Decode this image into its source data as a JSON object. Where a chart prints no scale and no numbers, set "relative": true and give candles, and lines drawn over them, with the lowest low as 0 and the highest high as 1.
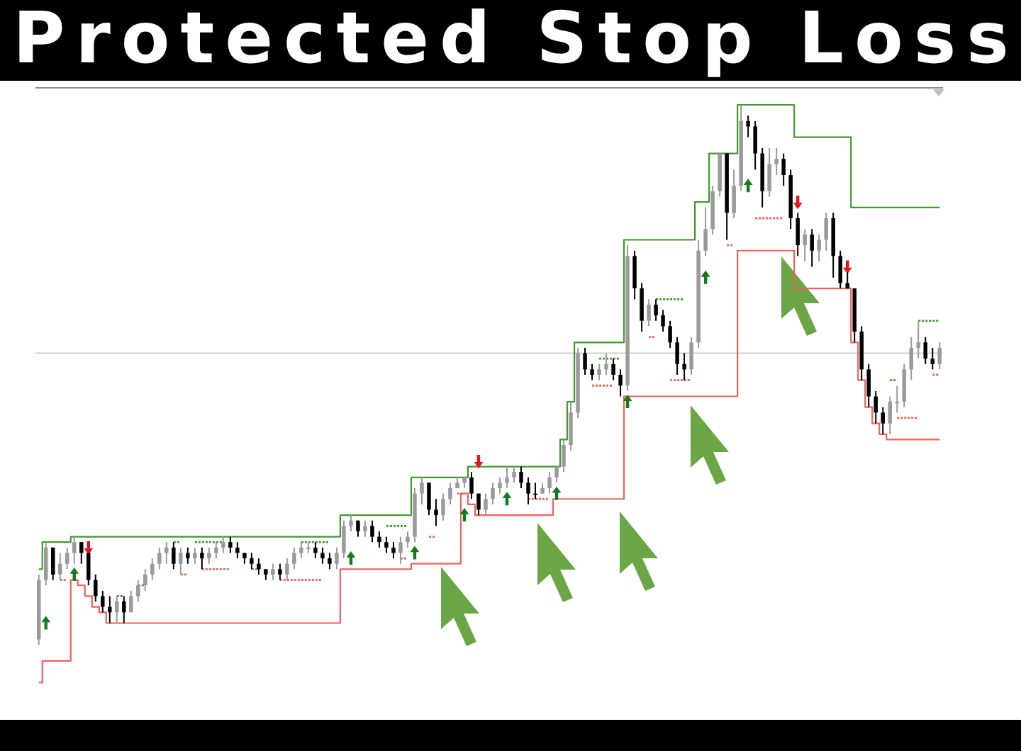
{
  "chart_data": {
    "type": "candlestick",
    "title": "Protected Stop Loss",
    "relative": true,
    "tick_labels": false,
    "categories": [
      null,
      null,
      null,
      null,
      null,
      null,
      null,
      null,
      null,
      null,
      null,
      null,
      null,
      null,
      null,
      null,
      null,
      null,
      null,
      null,
      null,
      null,
      null,
      null,
      null,
      null,
      null,
      null,
      null,
      null,
      null,
      null,
      null,
      null,
      null,
      null,
      null,
      null,
      null,
      null,
      null,
      null,
      null,
      null,
      null,
      null,
      null,
      null,
      null,
      null,
      null,
      null,
      null,
      null,
      null,
      null,
      null,
      null,
      null,
      null,
      null,
      null,
      null,
      null,
      null,
      null,
      null,
      null,
      null,
      null,
      null,
      null,
      null,
      null,
      null,
      null,
      null,
      null,
      null,
      null,
      null,
      null,
      null,
      null,
      null,
      null,
      null,
      null,
      null,
      null,
      null,
      null,
      null,
      null,
      null,
      null,
      null,
      null,
      null,
      null,
      null,
      null,
      null,
      null,
      null,
      null,
      null,
      null,
      null,
      null,
      null,
      null,
      null,
      null,
      null,
      null,
      null,
      null,
      null,
      null,
      null,
      null,
      null,
      null,
      null,
      null,
      null,
      null
    ],
    "ohlc": [
      [
        0.01,
        0.13,
        0,
        0.12
      ],
      [
        0.12,
        0.19,
        0.11,
        0.18
      ],
      [
        0.18,
        0.18,
        0.12,
        0.13
      ],
      [
        0.13,
        0.17,
        0.12,
        0.15
      ],
      [
        0.15,
        0.18,
        0.14,
        0.17
      ],
      [
        0.17,
        0.2,
        0.15,
        0.19
      ],
      [
        0.19,
        0.19,
        0.15,
        0.17
      ],
      [
        0.17,
        0.17,
        0.11,
        0.12
      ],
      [
        0.12,
        0.13,
        0.08,
        0.09
      ],
      [
        0.09,
        0.1,
        0.06,
        0.07
      ],
      [
        0.07,
        0.09,
        0.04,
        0.06
      ],
      [
        0.06,
        0.09,
        0.04,
        0.08
      ],
      [
        0.08,
        0.09,
        0.04,
        0.06
      ],
      [
        0.06,
        0.1,
        0.06,
        0.09
      ],
      [
        0.09,
        0.12,
        0.08,
        0.11
      ],
      [
        0.11,
        0.14,
        0.1,
        0.13
      ],
      [
        0.13,
        0.16,
        0.12,
        0.15
      ],
      [
        0.15,
        0.18,
        0.14,
        0.17
      ],
      [
        0.17,
        0.19,
        0.15,
        0.18
      ],
      [
        0.18,
        0.19,
        0.14,
        0.15
      ],
      [
        0.15,
        0.18,
        0.13,
        0.17
      ],
      [
        0.17,
        0.18,
        0.15,
        0.16
      ],
      [
        0.16,
        0.18,
        0.15,
        0.17
      ],
      [
        0.17,
        0.18,
        0.14,
        0.16
      ],
      [
        0.16,
        0.18,
        0.15,
        0.17
      ],
      [
        0.17,
        0.19,
        0.16,
        0.18
      ],
      [
        0.18,
        0.2,
        0.17,
        0.19
      ],
      [
        0.19,
        0.2,
        0.17,
        0.18
      ],
      [
        0.18,
        0.19,
        0.16,
        0.17
      ],
      [
        0.17,
        0.17,
        0.15,
        0.16
      ],
      [
        0.16,
        0.17,
        0.14,
        0.15
      ],
      [
        0.15,
        0.16,
        0.13,
        0.14
      ],
      [
        0.14,
        0.14,
        0.12,
        0.13
      ],
      [
        0.13,
        0.15,
        0.12,
        0.14
      ],
      [
        0.14,
        0.15,
        0.12,
        0.13
      ],
      [
        0.13,
        0.16,
        0.12,
        0.15
      ],
      [
        0.15,
        0.18,
        0.14,
        0.17
      ],
      [
        0.17,
        0.19,
        0.16,
        0.18
      ],
      [
        0.18,
        0.19,
        0.17,
        0.18
      ],
      [
        0.18,
        0.19,
        0.16,
        0.17
      ],
      [
        0.17,
        0.18,
        0.15,
        0.16
      ],
      [
        0.16,
        0.17,
        0.14,
        0.15
      ],
      [
        0.15,
        0.18,
        0.14,
        0.17
      ],
      [
        0.17,
        0.23,
        0.16,
        0.22
      ],
      [
        0.22,
        0.24,
        0.21,
        0.23
      ],
      [
        0.23,
        0.23,
        0.2,
        0.21
      ],
      [
        0.21,
        0.23,
        0.2,
        0.22
      ],
      [
        0.22,
        0.23,
        0.19,
        0.2
      ],
      [
        0.2,
        0.21,
        0.18,
        0.19
      ],
      [
        0.19,
        0.2,
        0.17,
        0.18
      ],
      [
        0.18,
        0.19,
        0.16,
        0.17
      ],
      [
        0.17,
        0.2,
        0.15,
        0.19
      ],
      [
        0.19,
        0.21,
        0.18,
        0.2
      ],
      [
        0.2,
        0.29,
        0.19,
        0.28
      ],
      [
        0.28,
        0.31,
        0.26,
        0.3
      ],
      [
        0.3,
        0.3,
        0.24,
        0.25
      ],
      [
        0.25,
        0.27,
        0.22,
        0.24
      ],
      [
        0.24,
        0.28,
        0.23,
        0.27
      ],
      [
        0.27,
        0.3,
        0.26,
        0.29
      ],
      [
        0.29,
        0.31,
        0.29,
        0.3
      ],
      [
        0.3,
        0.31,
        0.29,
        0.31
      ],
      [
        0.31,
        0.32,
        0.27,
        0.28
      ],
      [
        0.28,
        0.28,
        0.24,
        0.25
      ],
      [
        0.25,
        0.28,
        0.24,
        0.27
      ],
      [
        0.27,
        0.3,
        0.26,
        0.29
      ],
      [
        0.29,
        0.31,
        0.28,
        0.3
      ],
      [
        0.3,
        0.33,
        0.29,
        0.31
      ],
      [
        0.31,
        0.33,
        0.3,
        0.32
      ],
      [
        0.32,
        0.33,
        0.29,
        0.3
      ],
      [
        0.3,
        0.31,
        0.26,
        0.28
      ],
      [
        0.28,
        0.3,
        0.27,
        0.28
      ],
      [
        0.28,
        0.3,
        0.28,
        0.29
      ],
      [
        0.29,
        0.32,
        0.28,
        0.31
      ],
      [
        0.31,
        0.33,
        0.3,
        0.33
      ],
      [
        0.33,
        0.38,
        0.32,
        0.37
      ],
      [
        0.37,
        0.45,
        0.36,
        0.43
      ],
      [
        0.43,
        0.55,
        0.42,
        0.54
      ],
      [
        0.54,
        0.55,
        0.5,
        0.51
      ],
      [
        0.51,
        0.52,
        0.49,
        0.5
      ],
      [
        0.5,
        0.52,
        0.49,
        0.51
      ],
      [
        0.51,
        0.54,
        0.5,
        0.52
      ],
      [
        0.52,
        0.53,
        0.49,
        0.5
      ],
      [
        0.5,
        0.51,
        0.46,
        0.48
      ],
      [
        0.48,
        0.74,
        0.47,
        0.72
      ],
      [
        0.72,
        0.73,
        0.64,
        0.66
      ],
      [
        0.66,
        0.67,
        0.58,
        0.6
      ],
      [
        0.6,
        0.64,
        0.59,
        0.63
      ],
      [
        0.63,
        0.64,
        0.6,
        0.61
      ],
      [
        0.61,
        0.62,
        0.58,
        0.59
      ],
      [
        0.59,
        0.6,
        0.55,
        0.56
      ],
      [
        0.56,
        0.57,
        0.5,
        0.52
      ],
      [
        0.52,
        0.54,
        0.49,
        0.51
      ],
      [
        0.51,
        0.57,
        0.5,
        0.56
      ],
      [
        0.56,
        0.75,
        0.55,
        0.73
      ],
      [
        0.73,
        0.81,
        0.72,
        0.77
      ],
      [
        0.77,
        0.85,
        0.76,
        0.84
      ],
      [
        0.84,
        0.91,
        0.83,
        0.91
      ],
      [
        0.91,
        0.91,
        0.75,
        0.8
      ],
      [
        0.8,
        0.88,
        0.79,
        0.85
      ],
      [
        0.85,
        1,
        0.84,
        0.97
      ],
      [
        0.97,
        0.98,
        0.94,
        0.96
      ],
      [
        0.96,
        0.97,
        0.88,
        0.91
      ],
      [
        0.91,
        0.92,
        0.81,
        0.84
      ],
      [
        0.84,
        0.92,
        0.83,
        0.89
      ],
      [
        0.89,
        0.92,
        0.87,
        0.9
      ],
      [
        0.9,
        0.91,
        0.85,
        0.87
      ],
      [
        0.87,
        0.88,
        0.77,
        0.79
      ],
      [
        0.79,
        0.8,
        0.72,
        0.74
      ],
      [
        0.74,
        0.77,
        0.71,
        0.76
      ],
      [
        0.76,
        0.77,
        0.7,
        0.73
      ],
      [
        0.73,
        0.76,
        0.71,
        0.75
      ],
      [
        0.75,
        0.8,
        0.73,
        0.79
      ],
      [
        0.79,
        0.8,
        0.68,
        0.72
      ],
      [
        0.72,
        0.73,
        0.66,
        0.67
      ],
      [
        0.67,
        0.69,
        0.66,
        0.66
      ],
      [
        0.66,
        0.66,
        0.56,
        0.58
      ],
      [
        0.58,
        0.59,
        0.49,
        0.51
      ],
      [
        0.51,
        0.52,
        0.44,
        0.46
      ],
      [
        0.46,
        0.47,
        0.41,
        0.43
      ],
      [
        0.43,
        0.44,
        0.39,
        0.41
      ],
      [
        0.41,
        0.46,
        0.39,
        0.45
      ],
      [
        0.45,
        0.48,
        0.43,
        0.45
      ],
      [
        0.45,
        0.52,
        0.44,
        0.51
      ],
      [
        0.51,
        0.57,
        0.49,
        0.55
      ],
      [
        0.55,
        0.6,
        0.53,
        0.56
      ],
      [
        0.56,
        0.57,
        0.52,
        0.53
      ],
      [
        0.53,
        0.55,
        0.51,
        0.52
      ],
      [
        0.52,
        0.56,
        0.51,
        0.55
      ]
    ],
    "colors": [
      "#9a9a9a",
      "#9a9a9a",
      "#000000",
      "#9a9a9a",
      "#9a9a9a",
      "#9a9a9a",
      "#000000",
      "#000000",
      "#000000",
      "#000000",
      "#000000",
      "#9a9a9a",
      "#000000",
      "#9a9a9a",
      "#9a9a9a",
      "#9a9a9a",
      "#9a9a9a",
      "#9a9a9a",
      "#9a9a9a",
      "#000000",
      "#9a9a9a",
      "#000000",
      "#9a9a9a",
      "#000000",
      "#9a9a9a",
      "#9a9a9a",
      "#9a9a9a",
      "#000000",
      "#000000",
      "#000000",
      "#000000",
      "#000000",
      "#000000",
      "#9a9a9a",
      "#000000",
      "#9a9a9a",
      "#9a9a9a",
      "#9a9a9a",
      "#9a9a9a",
      "#000000",
      "#000000",
      "#000000",
      "#9a9a9a",
      "#9a9a9a",
      "#9a9a9a",
      "#000000",
      "#9a9a9a",
      "#000000",
      "#000000",
      "#000000",
      "#000000",
      "#9a9a9a",
      "#9a9a9a",
      "#9a9a9a",
      "#9a9a9a",
      "#000000",
      "#000000",
      "#9a9a9a",
      "#9a9a9a",
      "#9a9a9a",
      "#9a9a9a",
      "#000000",
      "#000000",
      "#9a9a9a",
      "#9a9a9a",
      "#9a9a9a",
      "#9a9a9a",
      "#9a9a9a",
      "#000000",
      "#000000",
      "#000000",
      "#9a9a9a",
      "#9a9a9a",
      "#9a9a9a",
      "#9a9a9a",
      "#9a9a9a",
      "#9a9a9a",
      "#000000",
      "#000000",
      "#9a9a9a",
      "#9a9a9a",
      "#000000",
      "#000000",
      "#9a9a9a",
      "#000000",
      "#000000",
      "#9a9a9a",
      "#000000",
      "#000000",
      "#000000",
      "#000000",
      "#000000",
      "#9a9a9a",
      "#9a9a9a",
      "#9a9a9a",
      "#9a9a9a",
      "#9a9a9a",
      "#000000",
      "#9a9a9a",
      "#9a9a9a",
      "#000000",
      "#000000",
      "#000000",
      "#9a9a9a",
      "#9a9a9a",
      "#000000",
      "#000000",
      "#000000",
      "#9a9a9a",
      "#000000",
      "#9a9a9a",
      "#9a9a9a",
      "#000000",
      "#000000",
      "#000000",
      "#000000",
      "#000000",
      "#000000",
      "#000000",
      "#000000",
      "#9a9a9a",
      "#9a9a9a",
      "#9a9a9a",
      "#9a9a9a",
      "#9a9a9a",
      "#000000",
      "#000000",
      "#9a9a9a"
    ],
    "series": [
      {
        "type": "step",
        "color": "#3f9a2e",
        "values": [
          0.14,
          0.19,
          0.19,
          0.19,
          0.19,
          0.2,
          0.2,
          0.2,
          0.2,
          0.2,
          0.2,
          0.2,
          0.2,
          0.2,
          0.2,
          0.2,
          0.2,
          0.2,
          0.2,
          0.2,
          0.2,
          0.2,
          0.2,
          0.2,
          0.2,
          0.2,
          0.2,
          0.2,
          0.2,
          0.2,
          0.2,
          0.2,
          0.2,
          0.2,
          0.2,
          0.2,
          0.2,
          0.2,
          0.2,
          0.2,
          0.2,
          0.2,
          0.2,
          0.24,
          0.24,
          0.24,
          0.24,
          0.24,
          0.24,
          0.24,
          0.24,
          0.24,
          0.24,
          0.31,
          0.31,
          0.31,
          0.31,
          0.31,
          0.31,
          0.31,
          0.31,
          0.33,
          0.33,
          0.33,
          0.33,
          0.33,
          0.33,
          0.33,
          0.33,
          0.33,
          0.33,
          0.33,
          0.33,
          0.33,
          0.38,
          0.45,
          0.56,
          0.56,
          0.56,
          0.56,
          0.56,
          0.56,
          0.56,
          0.75,
          0.75,
          0.75,
          0.75,
          0.75,
          0.75,
          0.75,
          0.75,
          0.75,
          0.75,
          0.82,
          0.82,
          0.91,
          0.91,
          0.91,
          0.91,
          1,
          1,
          1,
          1,
          1,
          1,
          1,
          1,
          0.94,
          0.94,
          0.94,
          0.94,
          0.94,
          0.94,
          0.94,
          0.94,
          0.81,
          0.81,
          0.81,
          0.81,
          0.81,
          0.81,
          0.81,
          0.81,
          0.81,
          0.81,
          0.81,
          0.81,
          0.81
        ]
      },
      {
        "type": "step",
        "color": "#f0625c",
        "values": [
          -0.07,
          -0.03,
          -0.03,
          -0.03,
          -0.03,
          0.12,
          0.11,
          0.09,
          0.07,
          0.06,
          0.04,
          0.04,
          0.04,
          0.04,
          0.04,
          0.04,
          0.04,
          0.04,
          0.04,
          0.04,
          0.04,
          0.04,
          0.04,
          0.04,
          0.04,
          0.04,
          0.04,
          0.04,
          0.04,
          0.04,
          0.04,
          0.04,
          0.04,
          0.04,
          0.04,
          0.04,
          0.04,
          0.04,
          0.04,
          0.04,
          0.04,
          0.04,
          0.04,
          0.14,
          0.14,
          0.14,
          0.14,
          0.14,
          0.14,
          0.14,
          0.14,
          0.14,
          0.14,
          0.15,
          0.15,
          0.15,
          0.15,
          0.15,
          0.15,
          0.15,
          0.28,
          0.26,
          0.24,
          0.24,
          0.24,
          0.24,
          0.24,
          0.24,
          0.24,
          0.24,
          0.24,
          0.24,
          0.24,
          0.27,
          0.27,
          0.27,
          0.27,
          0.27,
          0.27,
          0.27,
          0.27,
          0.27,
          0.27,
          0.46,
          0.46,
          0.46,
          0.46,
          0.46,
          0.46,
          0.46,
          0.46,
          0.46,
          0.46,
          0.46,
          0.46,
          0.46,
          0.46,
          0.46,
          0.46,
          0.73,
          0.73,
          0.73,
          0.73,
          0.73,
          0.73,
          0.73,
          0.73,
          0.66,
          0.66,
          0.66,
          0.66,
          0.66,
          0.66,
          0.66,
          0.66,
          0.56,
          0.49,
          0.44,
          0.41,
          0.39,
          0.38,
          0.38,
          0.38,
          0.38,
          0.38,
          0.38,
          0.38,
          0.38
        ]
      },
      {
        "type": "line",
        "line_style": "dotted",
        "color": "#3f9a2e",
        "values": [
          null,
          null,
          null,
          null,
          null,
          null,
          null,
          null,
          null,
          null,
          null,
          0.09,
          0.09,
          null,
          0.11,
          0.11,
          null,
          null,
          null,
          0.19,
          0.19,
          null,
          0.19,
          0.19,
          0.19,
          0.19,
          0.19,
          null,
          null,
          null,
          null,
          null,
          null,
          null,
          null,
          null,
          null,
          0.19,
          0.19,
          0.19,
          0.19,
          0.19,
          null,
          null,
          null,
          null,
          null,
          null,
          null,
          0.22,
          0.22,
          0.22,
          0.22,
          null,
          null,
          null,
          null,
          null,
          null,
          null,
          null,
          null,
          null,
          null,
          null,
          null,
          null,
          null,
          null,
          null,
          null,
          null,
          null,
          null,
          null,
          null,
          null,
          null,
          null,
          0.53,
          0.53,
          0.53,
          0.53,
          null,
          null,
          null,
          null,
          0.64,
          0.64,
          0.64,
          0.64,
          0.64,
          null,
          null,
          null,
          null,
          null,
          null,
          null,
          null,
          null,
          null,
          null,
          null,
          null,
          null,
          null,
          null,
          null,
          null,
          null,
          null,
          null,
          null,
          null,
          null,
          null,
          null,
          null,
          null,
          0.49,
          0.49,
          null,
          null,
          0.6,
          0.6,
          0.6,
          0.6
        ]
      },
      {
        "type": "line",
        "line_style": "dotted",
        "color": "#f0625c",
        "values": [
          null,
          null,
          null,
          0.12,
          0.12,
          null,
          null,
          null,
          null,
          null,
          null,
          null,
          null,
          null,
          null,
          null,
          null,
          null,
          null,
          null,
          0.13,
          0.13,
          null,
          0.14,
          0.14,
          0.14,
          0.14,
          0.14,
          null,
          null,
          0.14,
          0.14,
          null,
          null,
          0.12,
          0.12,
          0.12,
          0.12,
          0.12,
          0.12,
          0.12,
          null,
          null,
          null,
          null,
          null,
          null,
          null,
          null,
          null,
          null,
          0.16,
          0.16,
          null,
          null,
          0.2,
          0.2,
          null,
          null,
          0.28,
          0.28,
          null,
          null,
          null,
          null,
          null,
          null,
          null,
          null,
          0.27,
          0.27,
          0.27,
          0.27,
          null,
          null,
          null,
          null,
          null,
          0.48,
          0.48,
          0.48,
          0.48,
          null,
          null,
          null,
          null,
          0.57,
          0.57,
          null,
          0.49,
          0.49,
          0.49,
          0.49,
          null,
          null,
          null,
          null,
          0.74,
          0.74,
          null,
          null,
          0.79,
          0.79,
          0.79,
          0.79,
          0.79,
          null,
          null,
          null,
          null,
          null,
          null,
          null,
          null,
          null,
          null,
          null,
          null,
          null,
          null,
          null,
          0.42,
          0.42,
          0.42,
          0.42,
          null,
          0.5,
          0.5
        ]
      },
      {
        "type": "scatter",
        "marker": "triangle",
        "color": "#0f7a1e",
        "values": [
          null,
          0.04,
          null,
          null,
          null,
          0.13,
          null,
          null,
          null,
          null,
          null,
          null,
          null,
          null,
          null,
          null,
          null,
          null,
          null,
          null,
          null,
          null,
          null,
          null,
          null,
          null,
          null,
          null,
          null,
          null,
          null,
          null,
          null,
          null,
          null,
          null,
          null,
          null,
          null,
          null,
          null,
          null,
          null,
          null,
          0.16,
          null,
          null,
          null,
          null,
          null,
          null,
          null,
          null,
          0.17,
          null,
          null,
          null,
          null,
          null,
          null,
          0.24,
          null,
          null,
          null,
          null,
          null,
          0.27,
          null,
          null,
          null,
          null,
          null,
          null,
          0.28,
          null,
          null,
          null,
          null,
          null,
          null,
          null,
          null,
          null,
          0.45,
          null,
          null,
          null,
          null,
          null,
          null,
          null,
          null,
          null,
          null,
          0.68,
          null,
          null,
          null,
          null,
          null,
          0.85,
          null,
          null,
          null,
          null,
          null,
          null,
          null,
          null,
          null,
          null,
          null,
          null,
          null,
          null,
          null,
          null,
          null,
          null,
          null,
          null,
          null,
          null,
          null,
          null,
          null,
          null,
          null
        ]
      },
      {
        "type": "scatter",
        "marker": "triangle",
        "color": "#e3161b",
        "values": [
          null,
          null,
          null,
          null,
          null,
          null,
          null,
          0.18,
          null,
          null,
          null,
          null,
          null,
          null,
          null,
          null,
          null,
          null,
          null,
          null,
          null,
          null,
          null,
          null,
          null,
          null,
          null,
          null,
          null,
          null,
          null,
          null,
          null,
          null,
          null,
          null,
          null,
          null,
          null,
          null,
          null,
          null,
          null,
          null,
          null,
          null,
          null,
          null,
          null,
          null,
          null,
          null,
          null,
          null,
          null,
          null,
          null,
          null,
          null,
          null,
          null,
          null,
          0.34,
          null,
          null,
          null,
          null,
          null,
          null,
          null,
          null,
          null,
          null,
          null,
          null,
          null,
          null,
          null,
          null,
          null,
          null,
          null,
          null,
          null,
          null,
          null,
          null,
          null,
          null,
          null,
          null,
          null,
          null,
          null,
          null,
          null,
          null,
          null,
          null,
          null,
          null,
          null,
          null,
          null,
          null,
          null,
          null,
          0.82,
          null,
          null,
          null,
          null,
          null,
          null,
          0.7,
          null,
          null,
          null,
          null,
          null,
          null,
          null,
          null,
          null,
          null,
          null,
          null,
          null
        ]
      }
    ],
    "ref_lines": [
      {
        "axis": "y",
        "value": 0.54,
        "color": "#cfcfcf"
      }
    ]
  }
}
